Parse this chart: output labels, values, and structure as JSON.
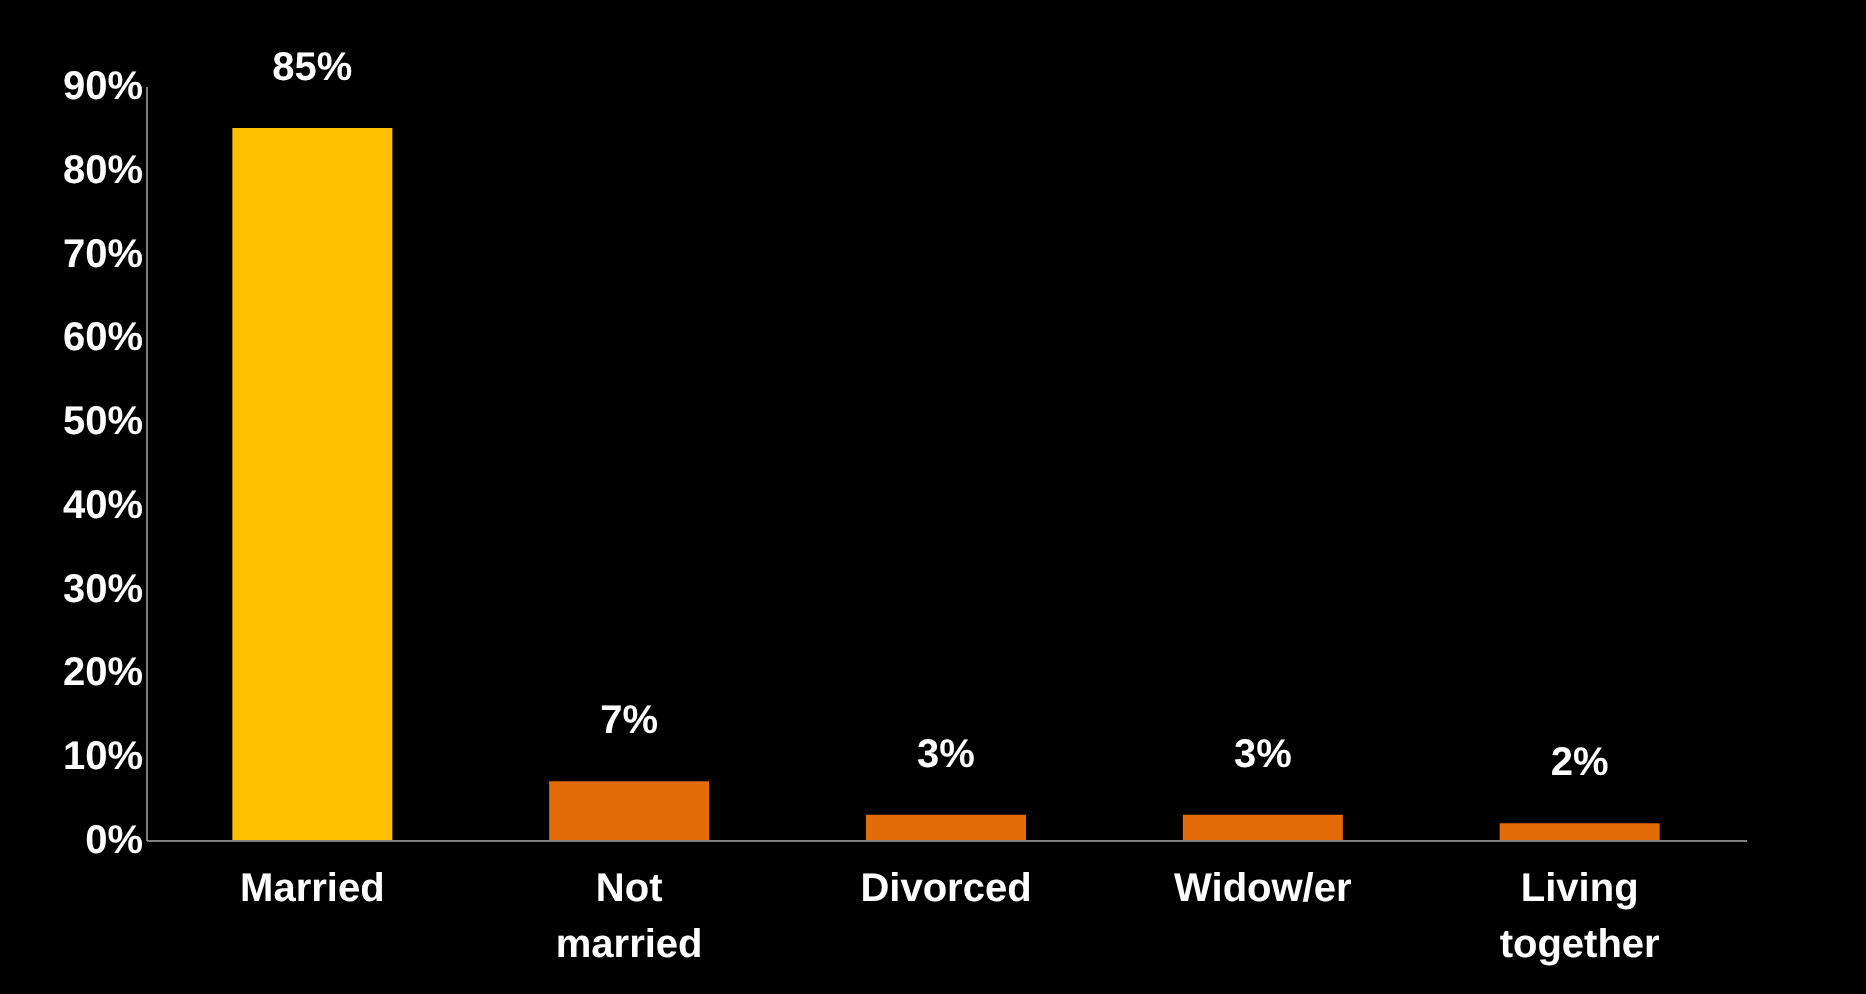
{
  "chart_data": {
    "type": "bar",
    "categories": [
      "Married",
      "Not married",
      "Divorced",
      "Widow/er",
      "Living together"
    ],
    "values": [
      85,
      7,
      3,
      3,
      2
    ],
    "colors": [
      "#ffc000",
      "#e36c09",
      "#e36c09",
      "#e36c09",
      "#e36c09"
    ],
    "value_labels": [
      "85%",
      "7%",
      "3%",
      "3%",
      "2%"
    ],
    "ylim": [
      0,
      90
    ],
    "yticks": [
      {
        "value": 0,
        "label": "0%"
      },
      {
        "value": 10,
        "label": "10%"
      },
      {
        "value": 20,
        "label": "20%"
      },
      {
        "value": 30,
        "label": "30%"
      },
      {
        "value": 40,
        "label": "40%"
      },
      {
        "value": 50,
        "label": "50%"
      },
      {
        "value": 60,
        "label": "60%"
      },
      {
        "value": 70,
        "label": "70%"
      },
      {
        "value": 80,
        "label": "80%"
      },
      {
        "value": 90,
        "label": "90%"
      }
    ],
    "grid": false
  }
}
